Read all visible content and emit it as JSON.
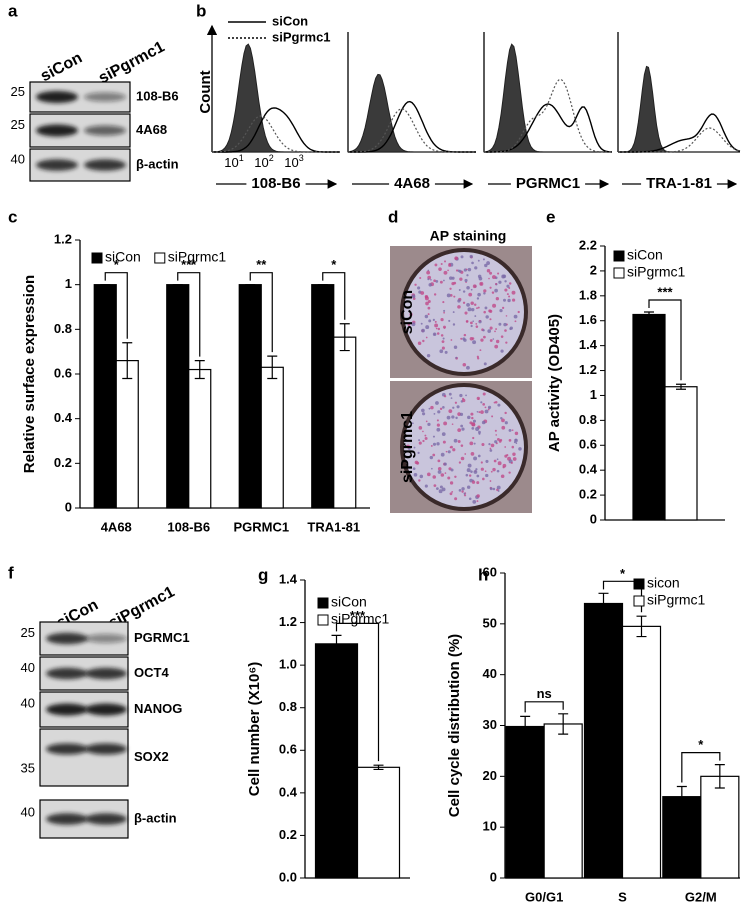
{
  "figure": {
    "a": {
      "panel": "a",
      "lanes": [
        "siCon",
        "siPgrmc1"
      ],
      "rows": [
        {
          "marker": "25",
          "label": "108-B6"
        },
        {
          "marker": "25",
          "label": "4A68"
        },
        {
          "marker": "40",
          "label": "β-actin"
        }
      ]
    },
    "b": {
      "panel": "b",
      "legend": [
        "siCon",
        "siPgrmc1"
      ],
      "ylabel": "Count",
      "xtick_labels": [
        {
          "base": "10",
          "exp": "1"
        },
        {
          "base": "10",
          "exp": "2"
        },
        {
          "base": "10",
          "exp": "3"
        }
      ],
      "plots": [
        "108-B6",
        "4A68",
        "PGRMC1",
        "TRA-1-81"
      ]
    },
    "d": {
      "panel": "d",
      "title": "AP staining",
      "rows": [
        "siCon",
        "siPgrmc1"
      ]
    },
    "f": {
      "panel": "f",
      "lanes": [
        "siCon",
        "siPgrmc1"
      ],
      "rows": [
        {
          "marker": "25",
          "label": "PGRMC1"
        },
        {
          "marker": "40",
          "label": "OCT4"
        },
        {
          "marker": "40",
          "label": "NANOG"
        },
        {
          "marker": "35",
          "label": "SOX2"
        },
        {
          "marker": "40",
          "label": "β-actin"
        }
      ]
    }
  },
  "chart_data": [
    {
      "type": "bar",
      "panel": "c",
      "ylabel": "Relative surface expression",
      "categories": [
        "4A68",
        "108-B6",
        "PGRMC1",
        "TRA1-81"
      ],
      "series": [
        {
          "name": "siCon",
          "color": "#000000",
          "values": [
            1,
            1,
            1,
            1
          ],
          "errors": [
            0,
            0,
            0,
            0
          ]
        },
        {
          "name": "siPgrmc1",
          "color": "#ffffff",
          "values": [
            0.66,
            0.62,
            0.63,
            0.765
          ],
          "errors": [
            0.08,
            0.04,
            0.05,
            0.06
          ]
        }
      ],
      "significance": [
        "*",
        "***",
        "**",
        "*"
      ],
      "ylim": [
        0,
        1.2
      ],
      "yticks": [
        0,
        0.2,
        0.4,
        0.6,
        0.8,
        1,
        1.2
      ]
    },
    {
      "type": "bar",
      "panel": "e",
      "ylabel": "AP activity (OD405)",
      "categories": [
        null
      ],
      "series": [
        {
          "name": "siCon",
          "color": "#000000",
          "values": [
            1.65
          ],
          "errors": [
            0.02
          ]
        },
        {
          "name": "siPgrmc1",
          "color": "#ffffff",
          "values": [
            1.07
          ],
          "errors": [
            0.02
          ]
        }
      ],
      "significance": [
        "***"
      ],
      "ylim": [
        0,
        2.2
      ],
      "yticks": [
        0,
        0.2,
        0.4,
        0.6,
        0.8,
        1,
        1.2,
        1.4,
        1.6,
        1.8,
        2,
        2.2
      ]
    },
    {
      "type": "bar",
      "panel": "g",
      "ylabel": "Cell number (X10⁶)",
      "categories": [
        null
      ],
      "series": [
        {
          "name": "siCon",
          "color": "#000000",
          "values": [
            1.1
          ],
          "errors": [
            0.04
          ]
        },
        {
          "name": "siPgrmc1",
          "color": "#ffffff",
          "values": [
            0.52
          ],
          "errors": [
            0.01
          ]
        }
      ],
      "significance": [
        "***"
      ],
      "ylim": [
        0,
        1.4
      ],
      "yticks": [
        {
          "value": 0,
          "label": "0.0"
        },
        0.2,
        0.4,
        0.6,
        0.8,
        {
          "value": 1,
          "label": "1.0"
        },
        1.2,
        1.4
      ]
    },
    {
      "type": "bar",
      "panel": "h",
      "ylabel": "Cell cycle distribution (%)",
      "categories": [
        "G0/G1",
        "S",
        "G2/M"
      ],
      "series": [
        {
          "name": "sicon",
          "color": "#000000",
          "values": [
            29.8,
            54,
            16
          ],
          "errors": [
            2,
            2,
            2
          ]
        },
        {
          "name": "siPgrmc1",
          "color": "#ffffff",
          "values": [
            30.3,
            49.5,
            20
          ],
          "errors": [
            2,
            2,
            2.3
          ]
        }
      ],
      "significance": [
        "ns",
        "*",
        "*"
      ],
      "ylim": [
        0,
        60
      ],
      "yticks": [
        0,
        10,
        20,
        30,
        40,
        50,
        60
      ]
    }
  ]
}
